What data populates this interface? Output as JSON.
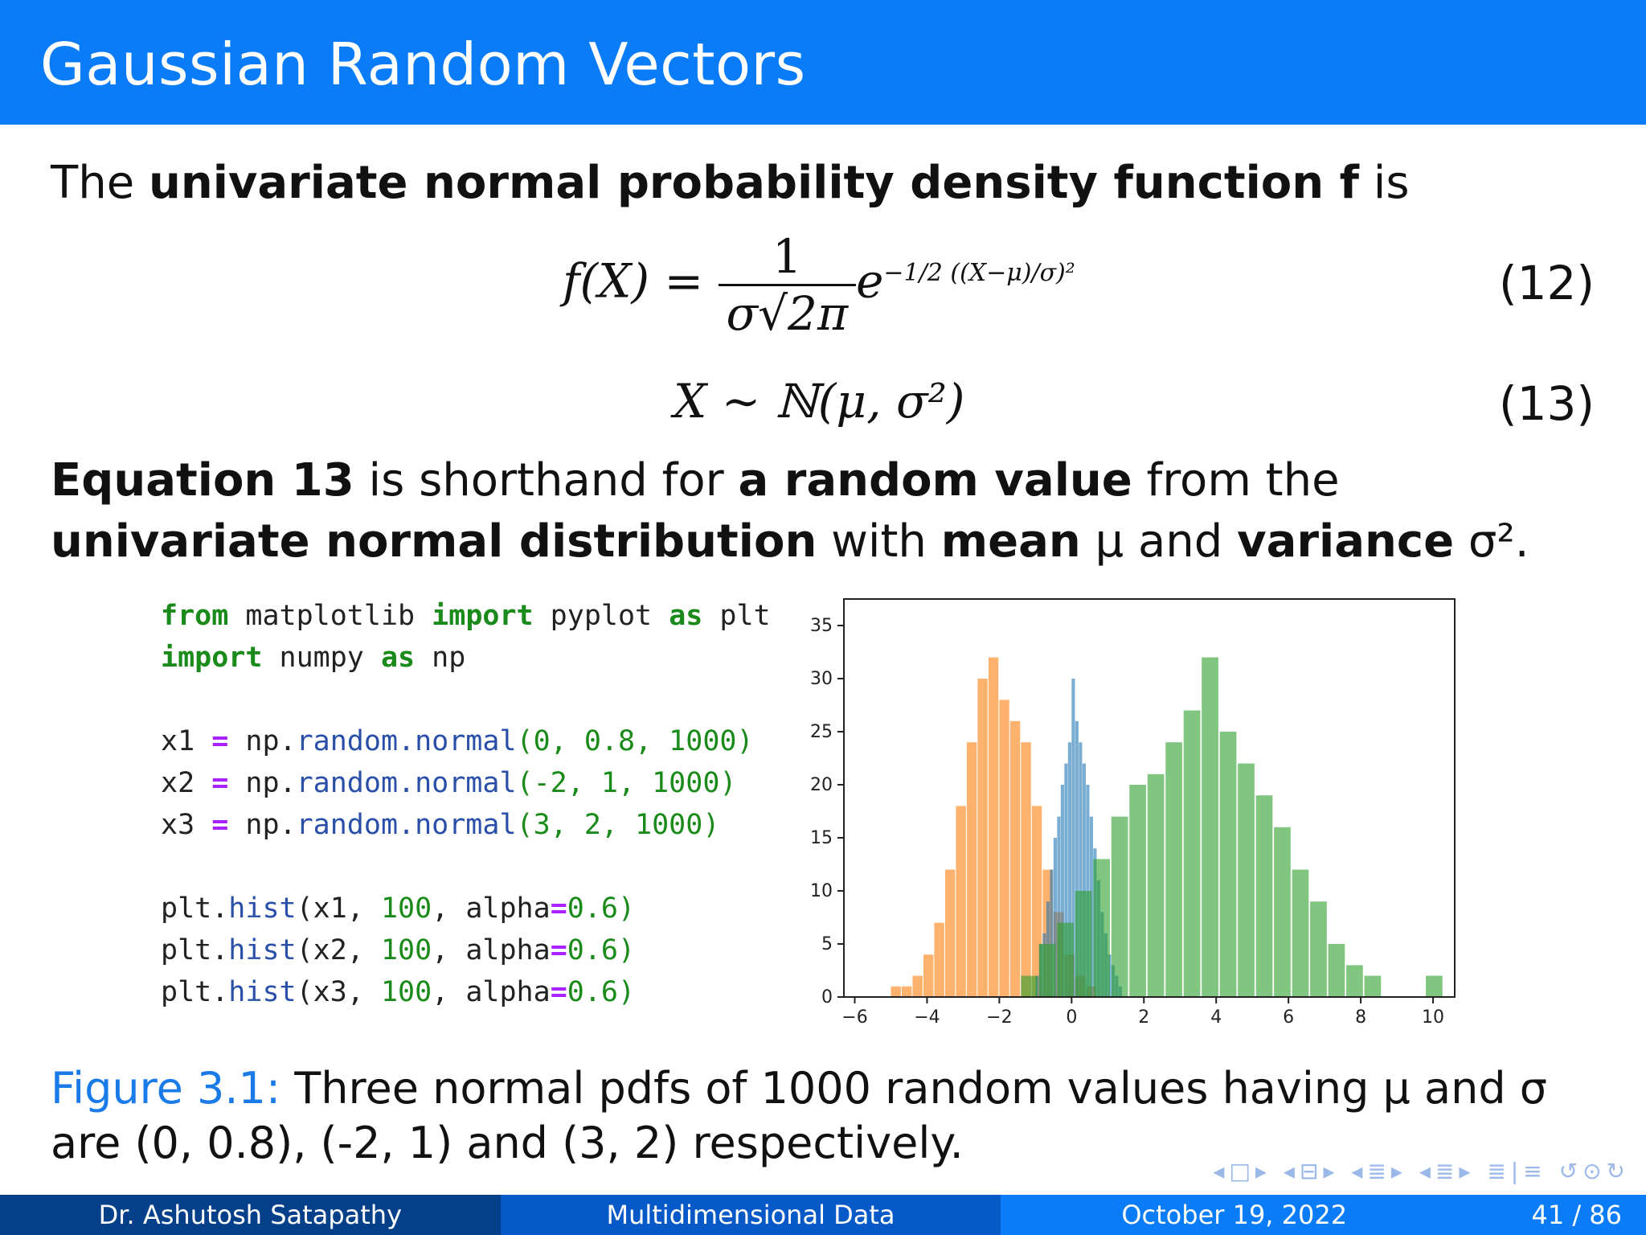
{
  "slide": {
    "title": "Gaussian Random Vectors",
    "intro": {
      "t1": "The ",
      "b1": "univariate normal probability density function f",
      "t2": " is"
    },
    "eq12": {
      "lhs": "f(X) =",
      "numerator": "1",
      "denominator": "σ√2π",
      "base": "e",
      "exp": "−1/2 ((X−μ)/σ)²",
      "number": "(12)"
    },
    "eq13": {
      "expr": "X ∼ ℕ(μ, σ²)",
      "number": "(13)"
    },
    "desc": {
      "b1": "Equation 13",
      "t1": " is shorthand for ",
      "b2": "a random value",
      "t2": " from the ",
      "b3": "univariate normal distribution",
      "t3": " with ",
      "b4": "mean",
      "t4": " μ and ",
      "b5": "variance",
      "t5": " σ²."
    },
    "code": {
      "line1": {
        "kw1": "from",
        "t1": " matplotlib ",
        "kw2": "import",
        "t2": " pyplot ",
        "kw3": "as",
        "t3": " plt"
      },
      "line2": {
        "kw1": "import",
        "t1": " numpy ",
        "kw2": "as",
        "t2": " np"
      },
      "line3": {
        "v": "x1 ",
        "eq": "=",
        "a": " np.",
        "fn": "random.normal",
        "args": "(0, 0.8, 1000)"
      },
      "line4": {
        "v": "x2 ",
        "eq": "=",
        "a": " np.",
        "fn": "random.normal",
        "args": "(-2, 1, 1000)"
      },
      "line5": {
        "v": "x3 ",
        "eq": "=",
        "a": " np.",
        "fn": "random.normal",
        "args": "(3, 2, 1000)"
      },
      "line6": {
        "a": "plt.",
        "fn": "hist",
        "b": "(x1, ",
        "n": "100",
        "c": ", alpha",
        "eq": "=",
        "d": "0.6)"
      },
      "line7": {
        "a": "plt.",
        "fn": "hist",
        "b": "(x2, ",
        "n": "100",
        "c": ", alpha",
        "eq": "=",
        "d": "0.6)"
      },
      "line8": {
        "a": "plt.",
        "fn": "hist",
        "b": "(x3, ",
        "n": "100",
        "c": ", alpha",
        "eq": "=",
        "d": "0.6)"
      }
    },
    "caption": {
      "label": "Figure 3.1:",
      "text": " Three normal pdfs of 1000 random values having μ and σ are (0, 0.8), (-2, 1) and (3, 2) respectively."
    },
    "footer": {
      "author": "Dr. Ashutosh Satapathy",
      "course": "Multidimensional Data",
      "date": "October 19, 2022",
      "page": "41 / 86"
    },
    "nav_icons": [
      "nav-prev-frame-icon",
      "nav-frame-icon",
      "nav-next-frame-icon",
      "nav-section-icon",
      "nav-subsection-icon",
      "nav-toc-icon",
      "search-icon"
    ]
  },
  "chart_data": {
    "type": "bar",
    "title": "",
    "xlabel": "",
    "ylabel": "",
    "xlim": [
      -6.3,
      10.6
    ],
    "ylim": [
      0,
      37.5
    ],
    "xticks": [
      -6,
      -4,
      -2,
      0,
      2,
      4,
      6,
      8,
      10
    ],
    "yticks": [
      0,
      5,
      10,
      15,
      20,
      25,
      30,
      35
    ],
    "grid": false,
    "colors": [
      "#1f77b4",
      "#ff7f0e",
      "#2ca02c"
    ],
    "alpha": 0.6,
    "series": [
      {
        "x": [
          -1.0,
          -0.9,
          -0.8,
          -0.7,
          -0.6,
          -0.5,
          -0.4,
          -0.3,
          -0.2,
          -0.1,
          0.0,
          0.1,
          0.2,
          0.3,
          0.4,
          0.5,
          0.6,
          0.7,
          0.8,
          0.9,
          1.0,
          1.1,
          1.2,
          1.3
        ],
        "values": [
          2,
          5,
          6,
          9,
          12,
          15,
          17,
          20,
          22,
          24,
          30,
          26,
          24,
          22,
          20,
          17,
          14,
          11,
          8,
          6,
          4,
          3,
          2,
          1
        ]
      },
      {
        "x": [
          -5.0,
          -4.7,
          -4.4,
          -4.1,
          -3.8,
          -3.5,
          -3.2,
          -2.9,
          -2.6,
          -2.3,
          -2.0,
          -1.7,
          -1.4,
          -1.1,
          -0.8,
          -0.5,
          -0.2,
          0.1,
          0.4
        ],
        "values": [
          1,
          1,
          2,
          4,
          7,
          12,
          18,
          24,
          30,
          32,
          28,
          26,
          24,
          18,
          12,
          8,
          4,
          2,
          1
        ]
      },
      {
        "x": [
          -1.4,
          -0.9,
          -0.4,
          0.1,
          0.6,
          1.1,
          1.6,
          2.1,
          2.6,
          3.1,
          3.6,
          4.1,
          4.6,
          5.1,
          5.6,
          6.1,
          6.6,
          7.1,
          7.6,
          8.1,
          9.8
        ],
        "values": [
          2,
          5,
          7,
          10,
          13,
          17,
          20,
          21,
          24,
          27,
          32,
          25,
          22,
          19,
          16,
          12,
          9,
          5,
          3,
          2,
          2
        ]
      }
    ]
  }
}
